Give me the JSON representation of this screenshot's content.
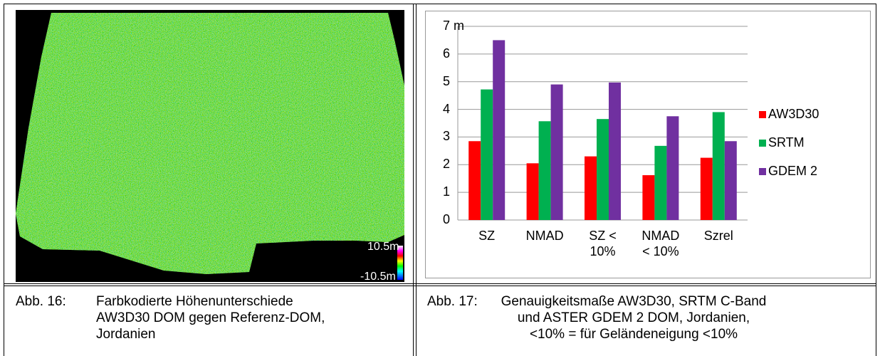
{
  "image": {
    "legend_max": "10.5m",
    "legend_min": "-10.5m"
  },
  "chart_data": {
    "type": "bar",
    "categories": [
      "SZ",
      "NMAD",
      "SZ < 10%",
      "NMAD < 10%",
      "Szrel"
    ],
    "series": [
      {
        "name": "AW3D30",
        "color": "#ff0000",
        "values": [
          2.85,
          2.05,
          2.3,
          1.62,
          2.25
        ]
      },
      {
        "name": "SRTM",
        "color": "#00b050",
        "values": [
          4.72,
          3.57,
          3.65,
          2.68,
          3.9
        ]
      },
      {
        "name": "GDEM 2",
        "color": "#7030a0",
        "values": [
          6.5,
          4.9,
          4.97,
          3.75,
          2.85
        ]
      }
    ],
    "ylim": [
      0,
      7
    ],
    "yticks": [
      0,
      1,
      2,
      3,
      4,
      5,
      6,
      {
        "value": 7,
        "label": "7 m"
      }
    ],
    "grid": true,
    "legend": "right"
  },
  "captions": [
    {
      "label": "Abb. 16:",
      "text": "Farbkodierte Höhenunterschiede AW3D30 DOM gegen Referenz-DOM, Jordanien"
    },
    {
      "label": "Abb. 17:",
      "text": "Genauigkeitsmaße AW3D30, SRTM C-Band und ASTER GDEM 2 DOM, Jordanien, <10% = für Geländeneigung <10%"
    }
  ]
}
